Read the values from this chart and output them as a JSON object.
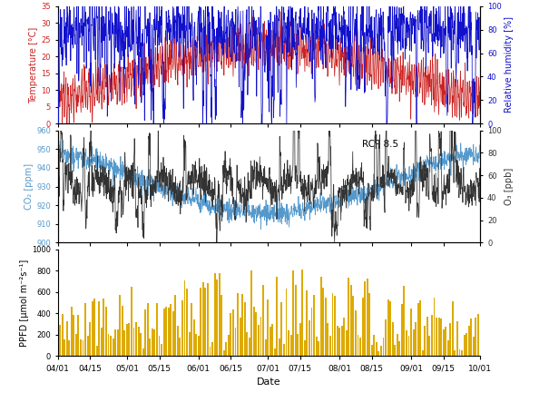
{
  "title": "",
  "date_start": "2071-04-01",
  "date_end": "2071-10-01",
  "n_days": 183,
  "temp_min": 0,
  "temp_max": 35,
  "rh_min": 0,
  "rh_max": 100,
  "co2_min": 900,
  "co2_max": 960,
  "o3_min": 0,
  "o3_max": 100,
  "ppfd_min": 0,
  "ppfd_max": 1000,
  "temp_color": "#cc2222",
  "rh_color": "#1111cc",
  "co2_color": "#5599cc",
  "o3_color": "#333333",
  "ppfd_color": "#ddaa00",
  "xlabel": "Date",
  "ylabel_temp": "Temperature [°C]",
  "ylabel_rh": "Relative humidity [%]",
  "ylabel_co2": "CO₂ [ppm]",
  "ylabel_o3": "O₃ [ppb]",
  "ylabel_ppfd": "PPFD [μmol m⁻²s⁻¹]",
  "annotation": "RCP 8.5",
  "tick_labels": [
    "04/01",
    "04/15",
    "05/01",
    "05/15",
    "06/01",
    "06/15",
    "07/01",
    "07/15",
    "08/01",
    "08/15",
    "09/01",
    "09/15",
    "10/01"
  ]
}
